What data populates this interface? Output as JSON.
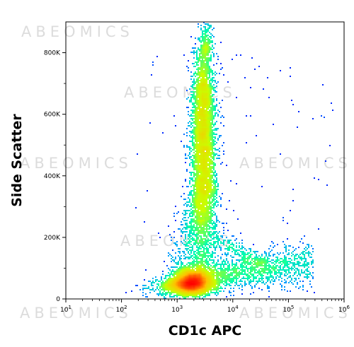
{
  "watermark": "ABEOMICS",
  "chart_data": {
    "type": "scatter",
    "title": "",
    "xlabel": "CD1c APC",
    "ylabel": "Side Scatter",
    "x_scale": "log",
    "xlim": [
      10,
      1000000
    ],
    "ylim": [
      0,
      900000
    ],
    "x_ticks": [
      {
        "value": 10,
        "base": "10",
        "exp": "1"
      },
      {
        "value": 100,
        "base": "10",
        "exp": "2"
      },
      {
        "value": 1000,
        "base": "10",
        "exp": "3"
      },
      {
        "value": 10000,
        "base": "10",
        "exp": "4"
      },
      {
        "value": 100000,
        "base": "10",
        "exp": "5"
      },
      {
        "value": 1000000,
        "base": "10",
        "exp": "6"
      }
    ],
    "y_ticks": [
      {
        "value": 0,
        "label": "0"
      },
      {
        "value": 200000,
        "label": "200K"
      },
      {
        "value": 400000,
        "label": "400K"
      },
      {
        "value": 600000,
        "label": "600K"
      },
      {
        "value": 800000,
        "label": "800K"
      }
    ],
    "populations": [
      {
        "center_x": 1800,
        "center_y": 60000,
        "spread_log_x": 0.2,
        "spread_y": 25000,
        "density": "very high"
      },
      {
        "center_x": 3000,
        "center_y": 480000,
        "spread_log_x": 0.13,
        "spread_y": 150000,
        "density": "high"
      },
      {
        "center_x": 30000,
        "center_y": 80000,
        "spread_log_x": 0.5,
        "spread_y": 30000,
        "density": "low"
      }
    ],
    "colormap": [
      "#0000ff",
      "#00a0ff",
      "#00ffb0",
      "#c8ff00",
      "#ffc000",
      "#ff0000"
    ],
    "grid": false,
    "legend": "none"
  }
}
